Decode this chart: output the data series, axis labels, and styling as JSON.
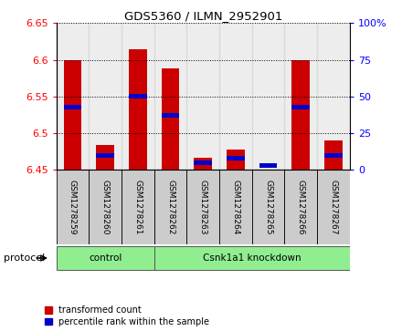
{
  "title": "GDS5360 / ILMN_2952901",
  "samples": [
    "GSM1278259",
    "GSM1278260",
    "GSM1278261",
    "GSM1278262",
    "GSM1278263",
    "GSM1278264",
    "GSM1278265",
    "GSM1278266",
    "GSM1278267"
  ],
  "red_values": [
    6.6,
    6.484,
    6.614,
    6.588,
    6.467,
    6.478,
    6.45,
    6.6,
    6.49
  ],
  "blue_values_pct": [
    43,
    10,
    50,
    37,
    5,
    8,
    3,
    43,
    10
  ],
  "ylim_left": [
    6.45,
    6.65
  ],
  "ylim_right": [
    0,
    100
  ],
  "yticks_left": [
    6.45,
    6.5,
    6.55,
    6.6,
    6.65
  ],
  "ytick_labels_left": [
    "6.45",
    "6.5",
    "6.55",
    "6.6",
    "6.65"
  ],
  "yticks_right": [
    0,
    25,
    50,
    75,
    100
  ],
  "ytick_labels_right": [
    "0",
    "25",
    "50",
    "75",
    "100%"
  ],
  "group_control": {
    "label": "control",
    "start": 0,
    "end": 2
  },
  "group_kd": {
    "label": "Csnk1a1 knockdown",
    "start": 3,
    "end": 8
  },
  "protocol_label": "protocol",
  "legend_red": "transformed count",
  "legend_blue": "percentile rank within the sample",
  "bar_width": 0.55,
  "red_color": "#CC0000",
  "blue_color": "#0000CC",
  "base_value": 6.45,
  "group_color": "#90EE90",
  "xtick_bg": "#CCCCCC",
  "blue_bar_height": 0.006
}
